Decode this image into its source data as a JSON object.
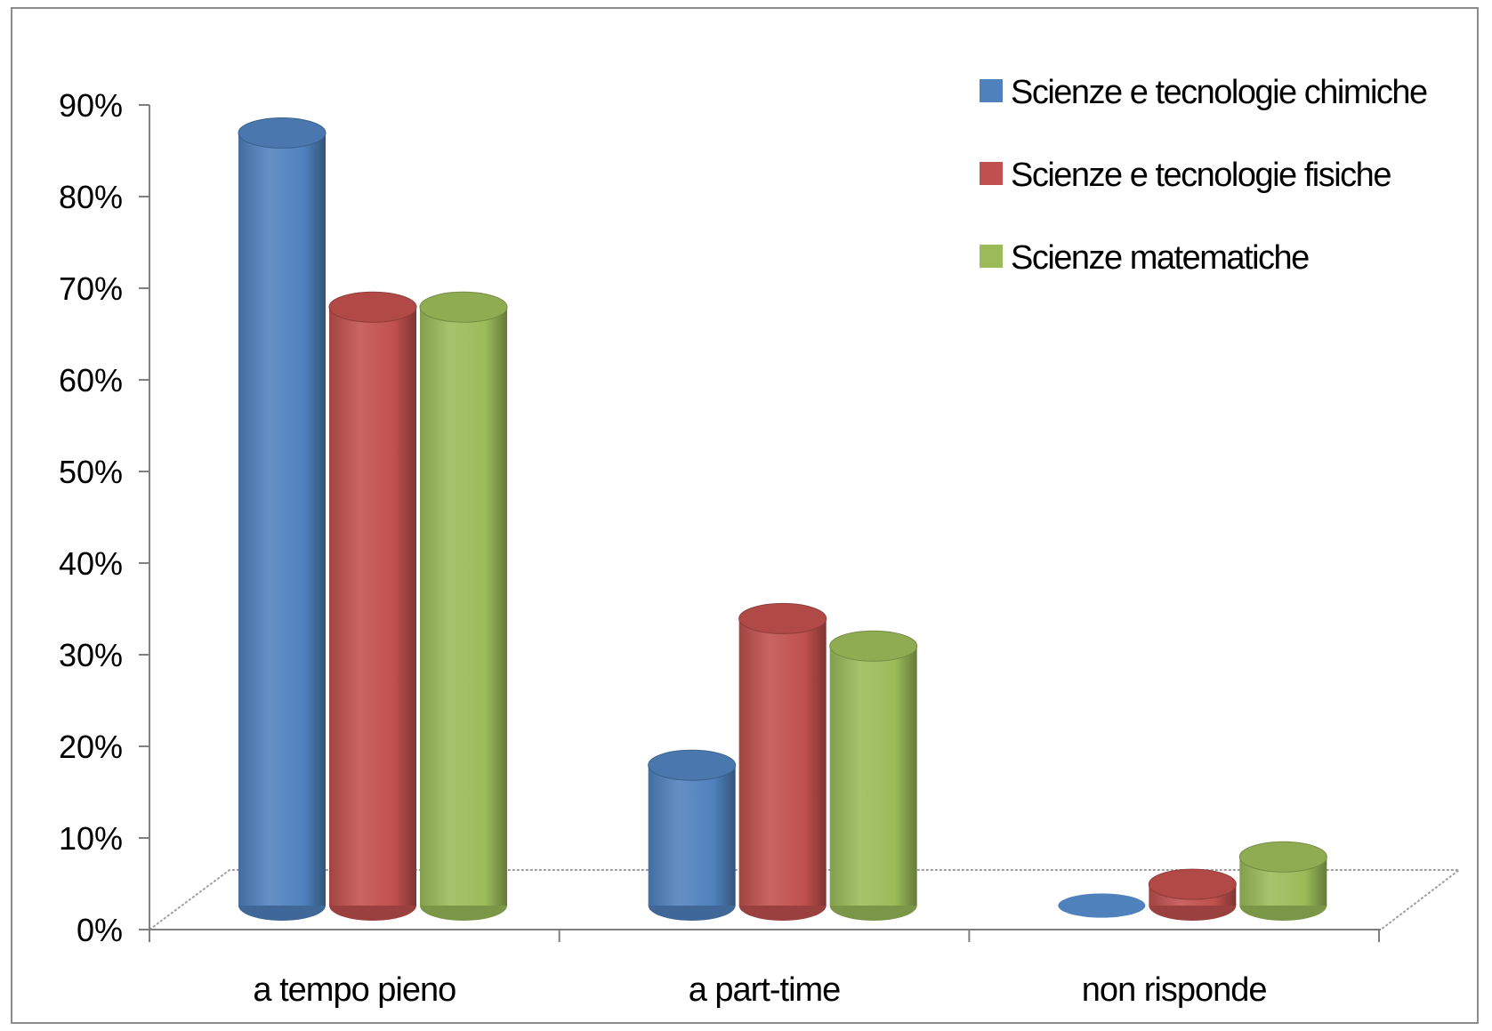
{
  "chart_data": {
    "type": "bar",
    "style": "3d-cylinder",
    "title": "",
    "xlabel": "",
    "ylabel": "",
    "categories": [
      "a tempo pieno",
      "a part-time",
      "non risponde"
    ],
    "series": [
      {
        "name": "Scienze e tecnologie chimiche",
        "color": "#4f81bd",
        "values": [
          85,
          16,
          0
        ]
      },
      {
        "name": "Scienze e tecnologie fisiche",
        "color": "#c0504d",
        "values": [
          66,
          32,
          3
        ]
      },
      {
        "name": "Scienze matematiche",
        "color": "#9bbb59",
        "values": [
          66,
          29,
          6
        ]
      }
    ],
    "ylim": [
      0,
      90
    ],
    "yticks": [
      "0%",
      "10%",
      "20%",
      "30%",
      "40%",
      "50%",
      "60%",
      "70%",
      "80%",
      "90%"
    ],
    "grid": false,
    "legend_position": "top-right"
  }
}
